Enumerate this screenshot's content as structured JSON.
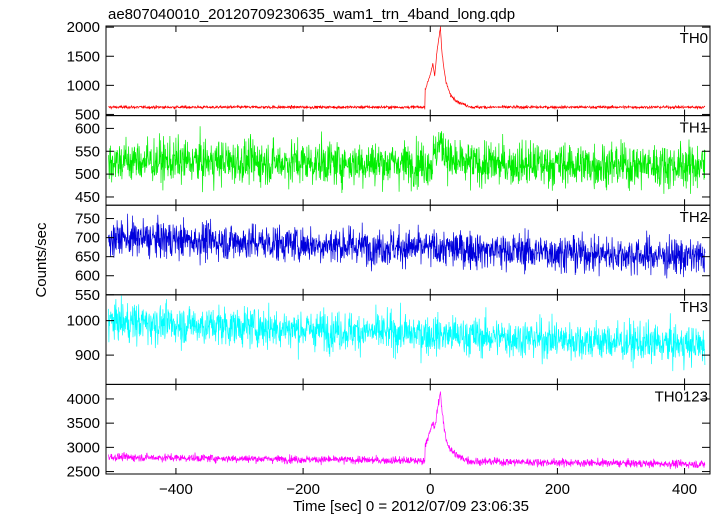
{
  "title": "ae807040010_20120709230635_wam1_trn_4band_long.qdp",
  "ylabel": "Counts/sec",
  "xlabel": "Time [sec] 0 = 2012/07/09 23:06:35",
  "chart_data": {
    "type": "line",
    "title": "ae807040010_20120709230635_wam1_trn_4band_long.qdp",
    "xlabel": "Time [sec] 0 = 2012/07/09 23:06:35",
    "ylabel": "Counts/sec",
    "xlim": [
      -510,
      440
    ],
    "xticks": [
      -400,
      -200,
      0,
      200,
      400
    ],
    "grid": false,
    "panels": [
      {
        "name": "TH0",
        "color": "#ff0000",
        "ylim": [
          480,
          2020
        ],
        "yticks": [
          500,
          1000,
          1500,
          2000
        ],
        "baseline": 625,
        "noise": 12,
        "trend": 0,
        "lift": 0,
        "burst": [
          {
            "t": -8,
            "v": 300
          },
          {
            "t": 0,
            "v": 560
          },
          {
            "t": 4,
            "v": 750
          },
          {
            "t": 7,
            "v": 520
          },
          {
            "t": 10,
            "v": 900
          },
          {
            "t": 13,
            "v": 1150
          },
          {
            "t": 16,
            "v": 1380
          },
          {
            "t": 18,
            "v": 1000
          },
          {
            "t": 21,
            "v": 700
          },
          {
            "t": 25,
            "v": 420
          },
          {
            "t": 32,
            "v": 200
          },
          {
            "t": 45,
            "v": 80
          },
          {
            "t": 65,
            "v": 0
          }
        ]
      },
      {
        "name": "TH1",
        "color": "#00ee00",
        "ylim": [
          432,
          628
        ],
        "yticks": [
          450,
          500,
          550,
          600
        ],
        "baseline": 523,
        "noise": 24,
        "trend": -0.012,
        "lift": 0,
        "burst": [
          {
            "t": 5,
            "v": 15
          },
          {
            "t": 15,
            "v": 45
          },
          {
            "t": 25,
            "v": 25
          },
          {
            "t": 35,
            "v": 0
          }
        ]
      },
      {
        "name": "TH2",
        "color": "#0000dd",
        "ylim": [
          550,
          785
        ],
        "yticks": [
          550,
          600,
          650,
          700,
          750
        ],
        "baseline": 672,
        "noise": 24,
        "trend": -0.055,
        "lift": 0,
        "burst": []
      },
      {
        "name": "TH3",
        "color": "#00ffff",
        "ylim": [
          815,
          1075
        ],
        "yticks": [
          900,
          1000
        ],
        "baseline": 960,
        "noise": 28,
        "trend": -0.075,
        "lift": 0,
        "burst": []
      },
      {
        "name": "TH0123",
        "color": "#ff00ff",
        "ylim": [
          2450,
          4300
        ],
        "yticks": [
          2500,
          3000,
          3500,
          4000
        ],
        "baseline": 2720,
        "noise": 40,
        "trend": -0.16,
        "lift": 0,
        "burst": [
          {
            "t": -8,
            "v": 350
          },
          {
            "t": 0,
            "v": 600
          },
          {
            "t": 4,
            "v": 800
          },
          {
            "t": 7,
            "v": 650
          },
          {
            "t": 10,
            "v": 950
          },
          {
            "t": 13,
            "v": 1200
          },
          {
            "t": 16,
            "v": 1450
          },
          {
            "t": 18,
            "v": 1100
          },
          {
            "t": 21,
            "v": 750
          },
          {
            "t": 25,
            "v": 450
          },
          {
            "t": 32,
            "v": 230
          },
          {
            "t": 45,
            "v": 90
          },
          {
            "t": 65,
            "v": 0
          }
        ]
      }
    ]
  }
}
